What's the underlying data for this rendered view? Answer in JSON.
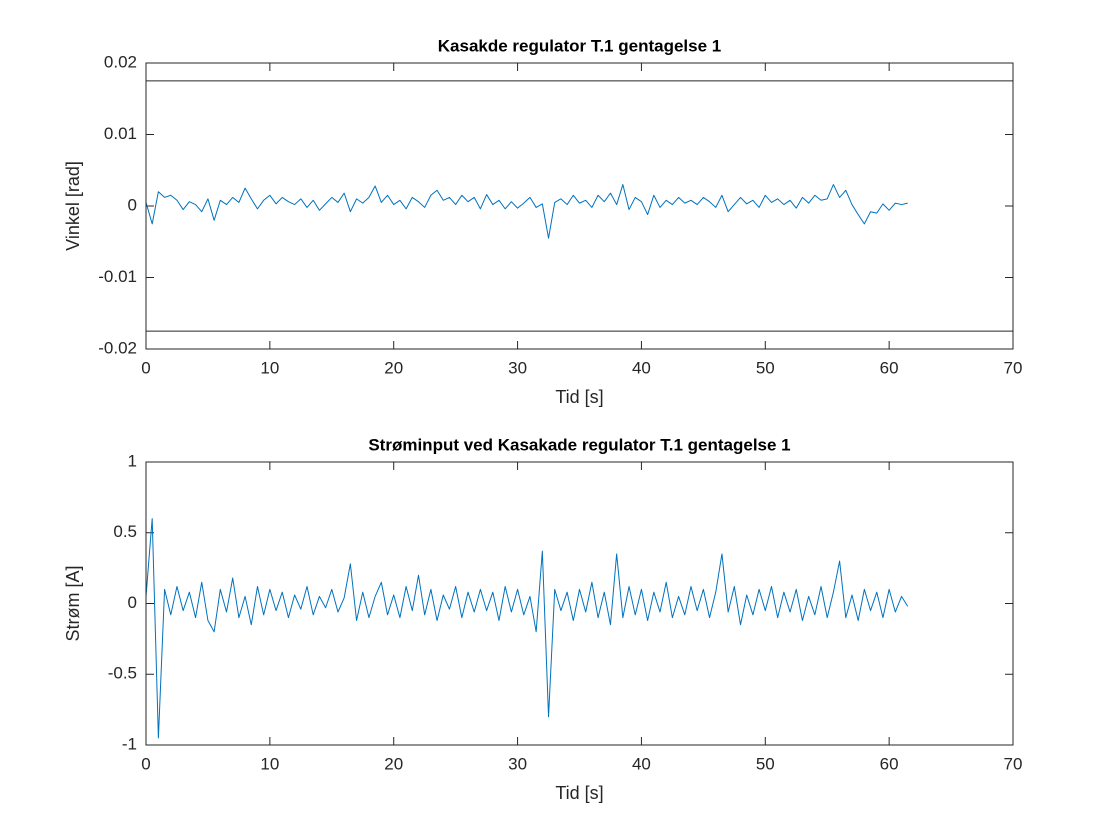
{
  "chart_data": [
    {
      "type": "line",
      "title": "Kasakde regulator T.1 gentagelse 1",
      "xlabel": "Tid [s]",
      "ylabel": "Vinkel [rad]",
      "x": [
        0,
        0.5,
        1,
        1.5,
        2,
        2.5,
        3,
        3.5,
        4,
        4.5,
        5,
        5.5,
        6,
        6.5,
        7,
        7.5,
        8,
        8.5,
        9,
        9.5,
        10,
        10.5,
        11,
        11.5,
        12,
        12.5,
        13,
        13.5,
        14,
        14.5,
        15,
        15.5,
        16,
        16.5,
        17,
        17.5,
        18,
        18.5,
        19,
        19.5,
        20,
        20.5,
        21,
        21.5,
        22,
        22.5,
        23,
        23.5,
        24,
        24.5,
        25,
        25.5,
        26,
        26.5,
        27,
        27.5,
        28,
        28.5,
        29,
        29.5,
        30,
        30.5,
        31,
        31.5,
        32,
        32.5,
        33,
        33.5,
        34,
        34.5,
        35,
        35.5,
        36,
        36.5,
        37,
        37.5,
        38,
        38.5,
        39,
        39.5,
        40,
        40.5,
        41,
        41.5,
        42,
        42.5,
        43,
        43.5,
        44,
        44.5,
        45,
        45.5,
        46,
        46.5,
        47,
        47.5,
        48,
        48.5,
        49,
        49.5,
        50,
        50.5,
        51,
        51.5,
        52,
        52.5,
        53,
        53.5,
        54,
        54.5,
        55,
        55.5,
        56,
        56.5,
        57,
        57.5,
        58,
        58.5,
        59,
        59.5,
        60,
        60.5,
        61,
        61.5
      ],
      "series": [
        {
          "color": "#0072bd",
          "values": [
            0.0005,
            -0.0025,
            0.002,
            0.0012,
            0.0015,
            0.0008,
            -0.0005,
            0.0006,
            0.0002,
            -0.0008,
            0.001,
            -0.002,
            0.0008,
            0.0002,
            0.0012,
            0.0005,
            0.0025,
            0.001,
            -0.0004,
            0.0008,
            0.0015,
            0.0003,
            0.0012,
            0.0006,
            0.0002,
            0.001,
            -0.0002,
            0.0008,
            -0.0006,
            0.0003,
            0.0012,
            0.0005,
            0.0018,
            -0.0008,
            0.001,
            0.0004,
            0.0012,
            0.0028,
            0.0005,
            0.0015,
            0.0002,
            0.0008,
            -0.0004,
            0.0012,
            0.0006,
            -0.0002,
            0.0015,
            0.0022,
            0.0008,
            0.0012,
            0.0002,
            0.0015,
            0.0006,
            0.0012,
            -0.0004,
            0.0016,
            0.0002,
            0.0008,
            -0.0004,
            0.0006,
            -0.0003,
            0.0004,
            0.0012,
            -0.0002,
            0.0003,
            -0.0045,
            0.0005,
            0.001,
            0.0002,
            0.0015,
            0.0004,
            0.0008,
            -0.0002,
            0.0015,
            0.0006,
            0.0018,
            0.0002,
            0.003,
            -0.0005,
            0.0012,
            0.0006,
            -0.0012,
            0.0015,
            -0.0002,
            0.0008,
            0.0002,
            0.0012,
            0.0004,
            0.0008,
            0.0002,
            0.0012,
            0.0006,
            -0.0002,
            0.0015,
            -0.0008,
            0.0002,
            0.0012,
            0.0003,
            0.0008,
            -0.0002,
            0.0015,
            0.0005,
            0.001,
            0.0002,
            0.0008,
            -0.0003,
            0.0012,
            0.0004,
            0.0015,
            0.0008,
            0.001,
            0.003,
            0.0012,
            0.0022,
            0.0002,
            -0.0012,
            -0.0025,
            -0.0008,
            -0.001,
            0.0003,
            -0.0006,
            0.0004,
            0.0002,
            0.0004
          ]
        }
      ],
      "reference_lines": {
        "values": [
          0.0175,
          -0.0175
        ],
        "color": "#262626"
      },
      "xlim": [
        0,
        70
      ],
      "ylim": [
        -0.02,
        0.02
      ],
      "xticks": [
        0,
        10,
        20,
        30,
        40,
        50,
        60,
        70
      ],
      "yticks": [
        -0.02,
        -0.01,
        0,
        0.01,
        0.02
      ]
    },
    {
      "type": "line",
      "title": "Strøminput ved Kasakade regulator T.1 gentagelse 1",
      "xlabel": "Tid [s]",
      "ylabel": "Strøm [A]",
      "x": [
        0,
        0.5,
        1,
        1.5,
        2,
        2.5,
        3,
        3.5,
        4,
        4.5,
        5,
        5.5,
        6,
        6.5,
        7,
        7.5,
        8,
        8.5,
        9,
        9.5,
        10,
        10.5,
        11,
        11.5,
        12,
        12.5,
        13,
        13.5,
        14,
        14.5,
        15,
        15.5,
        16,
        16.5,
        17,
        17.5,
        18,
        18.5,
        19,
        19.5,
        20,
        20.5,
        21,
        21.5,
        22,
        22.5,
        23,
        23.5,
        24,
        24.5,
        25,
        25.5,
        26,
        26.5,
        27,
        27.5,
        28,
        28.5,
        29,
        29.5,
        30,
        30.5,
        31,
        31.5,
        32,
        32.5,
        33,
        33.5,
        34,
        34.5,
        35,
        35.5,
        36,
        36.5,
        37,
        37.5,
        38,
        38.5,
        39,
        39.5,
        40,
        40.5,
        41,
        41.5,
        42,
        42.5,
        43,
        43.5,
        44,
        44.5,
        45,
        45.5,
        46,
        46.5,
        47,
        47.5,
        48,
        48.5,
        49,
        49.5,
        50,
        50.5,
        51,
        51.5,
        52,
        52.5,
        53,
        53.5,
        54,
        54.5,
        55,
        55.5,
        56,
        56.5,
        57,
        57.5,
        58,
        58.5,
        59,
        59.5,
        60,
        60.5,
        61,
        61.5
      ],
      "series": [
        {
          "color": "#0072bd",
          "values": [
            0.05,
            0.6,
            -0.95,
            0.1,
            -0.08,
            0.12,
            -0.05,
            0.08,
            -0.1,
            0.15,
            -0.12,
            -0.2,
            0.1,
            -0.06,
            0.18,
            -0.1,
            0.05,
            -0.15,
            0.12,
            -0.08,
            0.1,
            -0.05,
            0.08,
            -0.1,
            0.06,
            -0.04,
            0.12,
            -0.08,
            0.05,
            -0.03,
            0.1,
            -0.06,
            0.04,
            0.28,
            -0.12,
            0.08,
            -0.1,
            0.05,
            0.15,
            -0.08,
            0.06,
            -0.1,
            0.12,
            -0.05,
            0.2,
            -0.08,
            0.1,
            -0.12,
            0.06,
            -0.04,
            0.12,
            -0.1,
            0.08,
            -0.06,
            0.1,
            -0.05,
            0.08,
            -0.12,
            0.12,
            -0.06,
            0.1,
            -0.08,
            0.05,
            -0.2,
            0.37,
            -0.8,
            0.1,
            -0.05,
            0.08,
            -0.12,
            0.1,
            -0.06,
            0.15,
            -0.1,
            0.08,
            -0.15,
            0.35,
            -0.1,
            0.12,
            -0.08,
            0.1,
            -0.12,
            0.08,
            -0.06,
            0.15,
            -0.1,
            0.05,
            -0.08,
            0.12,
            -0.05,
            0.1,
            -0.1,
            0.08,
            0.35,
            -0.06,
            0.12,
            -0.15,
            0.06,
            -0.08,
            0.1,
            -0.05,
            0.12,
            -0.1,
            0.08,
            -0.06,
            0.1,
            -0.12,
            0.05,
            -0.08,
            0.12,
            -0.1,
            0.08,
            0.3,
            -0.1,
            0.06,
            -0.12,
            0.1,
            -0.05,
            0.08,
            -0.1,
            0.1,
            -0.06,
            0.05,
            -0.02
          ]
        }
      ],
      "xlim": [
        0,
        70
      ],
      "ylim": [
        -1,
        1
      ],
      "xticks": [
        0,
        10,
        20,
        30,
        40,
        50,
        60,
        70
      ],
      "yticks": [
        -1,
        -0.5,
        0,
        0.5,
        1
      ]
    }
  ]
}
